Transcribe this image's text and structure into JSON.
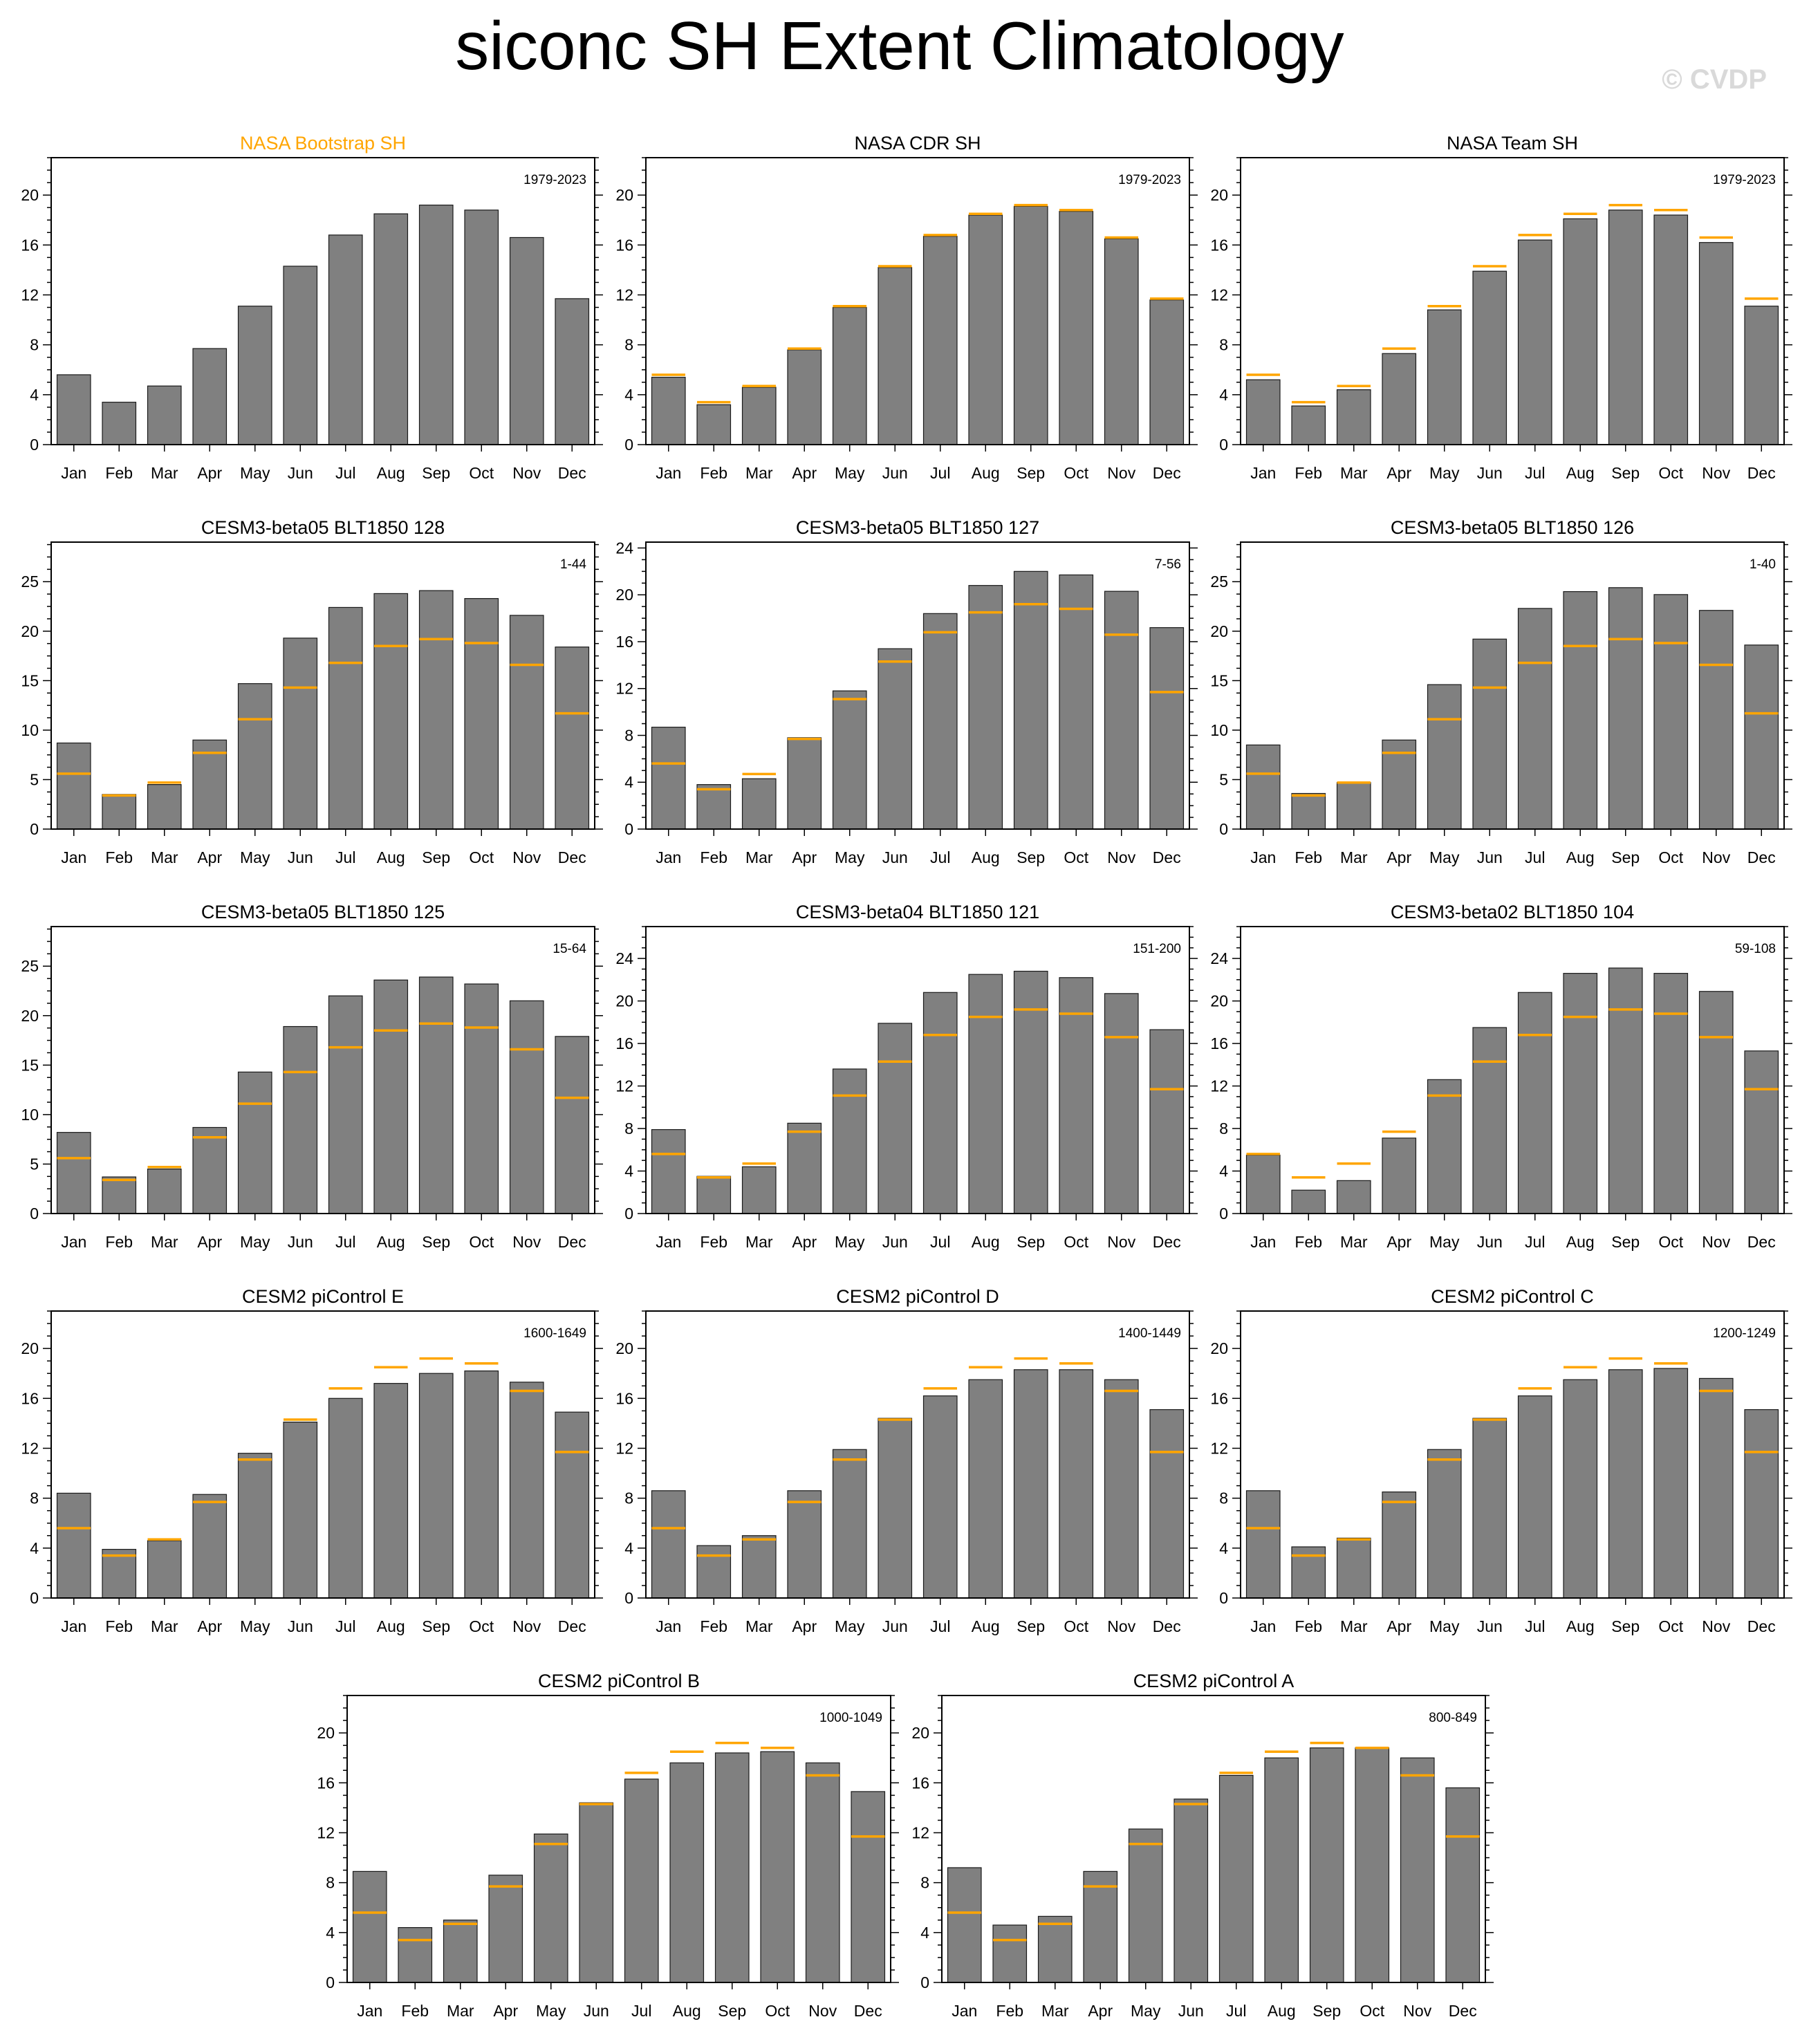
{
  "page": {
    "title": "siconc SH Extent Climatology",
    "watermark": "© CVDP"
  },
  "colors": {
    "bar_fill": "#808080",
    "bar_edge": "#1a1a1a",
    "obs_line": "#FFA500",
    "obs_title": "#FFA500",
    "title": "#000000",
    "watermark": "#d9d9d9"
  },
  "chart_data": [
    {
      "type": "bar",
      "title": "NASA Bootstrap SH",
      "title_color": "obs",
      "period": "1979-2023",
      "categories": [
        "Jan",
        "Feb",
        "Mar",
        "Apr",
        "May",
        "Jun",
        "Jul",
        "Aug",
        "Sep",
        "Oct",
        "Nov",
        "Dec"
      ],
      "ylim": [
        0,
        23
      ],
      "yticks": [
        0,
        4,
        8,
        12,
        16,
        20
      ],
      "values": [
        5.6,
        3.4,
        4.7,
        7.7,
        11.1,
        14.3,
        16.8,
        18.5,
        19.2,
        18.8,
        16.6,
        11.7
      ],
      "reference": null
    },
    {
      "type": "bar",
      "title": "NASA CDR SH",
      "period": "1979-2023",
      "categories": [
        "Jan",
        "Feb",
        "Mar",
        "Apr",
        "May",
        "Jun",
        "Jul",
        "Aug",
        "Sep",
        "Oct",
        "Nov",
        "Dec"
      ],
      "ylim": [
        0,
        23
      ],
      "yticks": [
        0,
        4,
        8,
        12,
        16,
        20
      ],
      "values": [
        5.4,
        3.2,
        4.6,
        7.6,
        11.0,
        14.2,
        16.7,
        18.4,
        19.1,
        18.7,
        16.5,
        11.6
      ],
      "reference": [
        5.6,
        3.4,
        4.7,
        7.7,
        11.1,
        14.3,
        16.8,
        18.5,
        19.2,
        18.8,
        16.6,
        11.7
      ]
    },
    {
      "type": "bar",
      "title": "NASA Team SH",
      "period": "1979-2023",
      "categories": [
        "Jan",
        "Feb",
        "Mar",
        "Apr",
        "May",
        "Jun",
        "Jul",
        "Aug",
        "Sep",
        "Oct",
        "Nov",
        "Dec"
      ],
      "ylim": [
        0,
        23
      ],
      "yticks": [
        0,
        4,
        8,
        12,
        16,
        20
      ],
      "values": [
        5.2,
        3.1,
        4.4,
        7.3,
        10.8,
        13.9,
        16.4,
        18.1,
        18.8,
        18.4,
        16.2,
        11.1
      ],
      "reference": [
        5.6,
        3.4,
        4.7,
        7.7,
        11.1,
        14.3,
        16.8,
        18.5,
        19.2,
        18.8,
        16.6,
        11.7
      ]
    },
    {
      "type": "bar",
      "title": "CESM3-beta05 BLT1850 128",
      "period": "1-44",
      "categories": [
        "Jan",
        "Feb",
        "Mar",
        "Apr",
        "May",
        "Jun",
        "Jul",
        "Aug",
        "Sep",
        "Oct",
        "Nov",
        "Dec"
      ],
      "ylim": [
        0,
        29
      ],
      "yticks": [
        0,
        5,
        10,
        15,
        20,
        25
      ],
      "values": [
        8.7,
        3.5,
        4.5,
        9.0,
        14.7,
        19.3,
        22.4,
        23.8,
        24.1,
        23.3,
        21.6,
        18.4
      ],
      "reference": [
        5.6,
        3.4,
        4.7,
        7.7,
        11.1,
        14.3,
        16.8,
        18.5,
        19.2,
        18.8,
        16.6,
        11.7
      ]
    },
    {
      "type": "bar",
      "title": "CESM3-beta05 BLT1850 127",
      "period": "7-56",
      "categories": [
        "Jan",
        "Feb",
        "Mar",
        "Apr",
        "May",
        "Jun",
        "Jul",
        "Aug",
        "Sep",
        "Oct",
        "Nov",
        "Dec"
      ],
      "ylim": [
        0,
        24.5
      ],
      "yticks": [
        0,
        4,
        8,
        12,
        16,
        20,
        24
      ],
      "values": [
        8.7,
        3.8,
        4.3,
        7.8,
        11.8,
        15.4,
        18.4,
        20.8,
        22.0,
        21.7,
        20.3,
        17.2
      ],
      "reference": [
        5.6,
        3.4,
        4.7,
        7.7,
        11.1,
        14.3,
        16.8,
        18.5,
        19.2,
        18.8,
        16.6,
        11.7
      ]
    },
    {
      "type": "bar",
      "title": "CESM3-beta05 BLT1850 126",
      "period": "1-40",
      "categories": [
        "Jan",
        "Feb",
        "Mar",
        "Apr",
        "May",
        "Jun",
        "Jul",
        "Aug",
        "Sep",
        "Oct",
        "Nov",
        "Dec"
      ],
      "ylim": [
        0,
        29
      ],
      "yticks": [
        0,
        5,
        10,
        15,
        20,
        25
      ],
      "values": [
        8.5,
        3.6,
        4.7,
        9.0,
        14.6,
        19.2,
        22.3,
        24.0,
        24.4,
        23.7,
        22.1,
        18.6
      ],
      "reference": [
        5.6,
        3.4,
        4.7,
        7.7,
        11.1,
        14.3,
        16.8,
        18.5,
        19.2,
        18.8,
        16.6,
        11.7
      ]
    },
    {
      "type": "bar",
      "title": "CESM3-beta05 BLT1850 125",
      "period": "15-64",
      "categories": [
        "Jan",
        "Feb",
        "Mar",
        "Apr",
        "May",
        "Jun",
        "Jul",
        "Aug",
        "Sep",
        "Oct",
        "Nov",
        "Dec"
      ],
      "ylim": [
        0,
        29
      ],
      "yticks": [
        0,
        5,
        10,
        15,
        20,
        25
      ],
      "values": [
        8.2,
        3.7,
        4.5,
        8.7,
        14.3,
        18.9,
        22.0,
        23.6,
        23.9,
        23.2,
        21.5,
        17.9
      ],
      "reference": [
        5.6,
        3.4,
        4.7,
        7.7,
        11.1,
        14.3,
        16.8,
        18.5,
        19.2,
        18.8,
        16.6,
        11.7
      ]
    },
    {
      "type": "bar",
      "title": "CESM3-beta04 BLT1850 121",
      "period": "151-200",
      "categories": [
        "Jan",
        "Feb",
        "Mar",
        "Apr",
        "May",
        "Jun",
        "Jul",
        "Aug",
        "Sep",
        "Oct",
        "Nov",
        "Dec"
      ],
      "ylim": [
        0,
        27
      ],
      "yticks": [
        0,
        4,
        8,
        12,
        16,
        20,
        24
      ],
      "values": [
        7.9,
        3.5,
        4.4,
        8.5,
        13.6,
        17.9,
        20.8,
        22.5,
        22.8,
        22.2,
        20.7,
        17.3
      ],
      "reference": [
        5.6,
        3.4,
        4.7,
        7.7,
        11.1,
        14.3,
        16.8,
        18.5,
        19.2,
        18.8,
        16.6,
        11.7
      ]
    },
    {
      "type": "bar",
      "title": "CESM3-beta02 BLT1850 104",
      "period": "59-108",
      "categories": [
        "Jan",
        "Feb",
        "Mar",
        "Apr",
        "May",
        "Jun",
        "Jul",
        "Aug",
        "Sep",
        "Oct",
        "Nov",
        "Dec"
      ],
      "ylim": [
        0,
        27
      ],
      "yticks": [
        0,
        4,
        8,
        12,
        16,
        20,
        24
      ],
      "values": [
        5.5,
        2.2,
        3.1,
        7.1,
        12.6,
        17.5,
        20.8,
        22.6,
        23.1,
        22.6,
        20.9,
        15.3
      ],
      "reference": [
        5.6,
        3.4,
        4.7,
        7.7,
        11.1,
        14.3,
        16.8,
        18.5,
        19.2,
        18.8,
        16.6,
        11.7
      ]
    },
    {
      "type": "bar",
      "title": "CESM2 piControl E",
      "period": "1600-1649",
      "categories": [
        "Jan",
        "Feb",
        "Mar",
        "Apr",
        "May",
        "Jun",
        "Jul",
        "Aug",
        "Sep",
        "Oct",
        "Nov",
        "Dec"
      ],
      "ylim": [
        0,
        23
      ],
      "yticks": [
        0,
        4,
        8,
        12,
        16,
        20
      ],
      "values": [
        8.4,
        3.9,
        4.6,
        8.3,
        11.6,
        14.1,
        16.0,
        17.2,
        18.0,
        18.2,
        17.3,
        14.9
      ],
      "reference": [
        5.6,
        3.4,
        4.7,
        7.7,
        11.1,
        14.3,
        16.8,
        18.5,
        19.2,
        18.8,
        16.6,
        11.7
      ]
    },
    {
      "type": "bar",
      "title": "CESM2 piControl D",
      "period": "1400-1449",
      "categories": [
        "Jan",
        "Feb",
        "Mar",
        "Apr",
        "May",
        "Jun",
        "Jul",
        "Aug",
        "Sep",
        "Oct",
        "Nov",
        "Dec"
      ],
      "ylim": [
        0,
        23
      ],
      "yticks": [
        0,
        4,
        8,
        12,
        16,
        20
      ],
      "values": [
        8.6,
        4.2,
        5.0,
        8.6,
        11.9,
        14.4,
        16.2,
        17.5,
        18.3,
        18.3,
        17.5,
        15.1
      ],
      "reference": [
        5.6,
        3.4,
        4.7,
        7.7,
        11.1,
        14.3,
        16.8,
        18.5,
        19.2,
        18.8,
        16.6,
        11.7
      ]
    },
    {
      "type": "bar",
      "title": "CESM2 piControl C",
      "period": "1200-1249",
      "categories": [
        "Jan",
        "Feb",
        "Mar",
        "Apr",
        "May",
        "Jun",
        "Jul",
        "Aug",
        "Sep",
        "Oct",
        "Nov",
        "Dec"
      ],
      "ylim": [
        0,
        23
      ],
      "yticks": [
        0,
        4,
        8,
        12,
        16,
        20
      ],
      "values": [
        8.6,
        4.1,
        4.8,
        8.5,
        11.9,
        14.4,
        16.2,
        17.5,
        18.3,
        18.4,
        17.6,
        15.1
      ],
      "reference": [
        5.6,
        3.4,
        4.7,
        7.7,
        11.1,
        14.3,
        16.8,
        18.5,
        19.2,
        18.8,
        16.6,
        11.7
      ]
    },
    {
      "type": "bar",
      "title": "CESM2 piControl B",
      "period": "1000-1049",
      "categories": [
        "Jan",
        "Feb",
        "Mar",
        "Apr",
        "May",
        "Jun",
        "Jul",
        "Aug",
        "Sep",
        "Oct",
        "Nov",
        "Dec"
      ],
      "ylim": [
        0,
        23
      ],
      "yticks": [
        0,
        4,
        8,
        12,
        16,
        20
      ],
      "values": [
        8.9,
        4.4,
        5.0,
        8.6,
        11.9,
        14.4,
        16.3,
        17.6,
        18.4,
        18.5,
        17.6,
        15.3
      ],
      "reference": [
        5.6,
        3.4,
        4.7,
        7.7,
        11.1,
        14.3,
        16.8,
        18.5,
        19.2,
        18.8,
        16.6,
        11.7
      ]
    },
    {
      "type": "bar",
      "title": "CESM2 piControl A",
      "period": "800-849",
      "categories": [
        "Jan",
        "Feb",
        "Mar",
        "Apr",
        "May",
        "Jun",
        "Jul",
        "Aug",
        "Sep",
        "Oct",
        "Nov",
        "Dec"
      ],
      "ylim": [
        0,
        23
      ],
      "yticks": [
        0,
        4,
        8,
        12,
        16,
        20
      ],
      "values": [
        9.2,
        4.6,
        5.3,
        8.9,
        12.3,
        14.7,
        16.6,
        18.0,
        18.8,
        18.8,
        18.0,
        15.6
      ],
      "reference": [
        5.6,
        3.4,
        4.7,
        7.7,
        11.1,
        14.3,
        16.8,
        18.5,
        19.2,
        18.8,
        16.6,
        11.7
      ]
    }
  ]
}
